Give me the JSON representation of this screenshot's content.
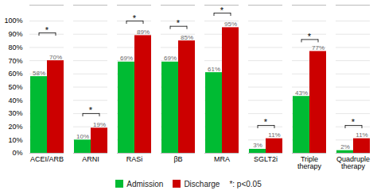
{
  "chart_data": {
    "type": "bar",
    "categories": [
      "ACEI/ARB",
      "ARNI",
      "RASi",
      "βB",
      "MRA",
      "SGLT2i",
      "Triple\ntherapy",
      "Quadruple\ntherapy"
    ],
    "series": [
      {
        "name": "Admission",
        "color": "#00bb33",
        "values": [
          58,
          10,
          69,
          69,
          61,
          3,
          43,
          2
        ],
        "value_labels": [
          "58%",
          "10%",
          "69%",
          "69%",
          "61%",
          "3%",
          "43%",
          "2%"
        ]
      },
      {
        "name": "Discharge",
        "color": "#cc0000",
        "values": [
          70,
          19,
          89,
          85,
          95,
          11,
          77,
          11
        ],
        "value_labels": [
          "70%",
          "19%",
          "89%",
          "85%",
          "95%",
          "11%",
          "77%",
          "11%"
        ]
      }
    ],
    "ylim": [
      0,
      112
    ],
    "yticks": [
      {
        "value": 0,
        "label": "0%"
      },
      {
        "value": 10,
        "label": "10%"
      },
      {
        "value": 20,
        "label": "20%"
      },
      {
        "value": 30,
        "label": "30%"
      },
      {
        "value": 40,
        "label": "40%"
      },
      {
        "value": 50,
        "label": "50%"
      },
      {
        "value": 60,
        "label": "60%"
      },
      {
        "value": 70,
        "label": "70%"
      },
      {
        "value": 80,
        "label": "80%"
      },
      {
        "value": 90,
        "label": "90%"
      },
      {
        "value": 100,
        "label": "100%"
      }
    ],
    "grid": true,
    "data_labels": true,
    "legend": "bottom",
    "bracket_heights": [
      91,
      30,
      100,
      96,
      106,
      21,
      86,
      21
    ],
    "bracket_label": "*",
    "legend_note": "*: p<0.05"
  }
}
